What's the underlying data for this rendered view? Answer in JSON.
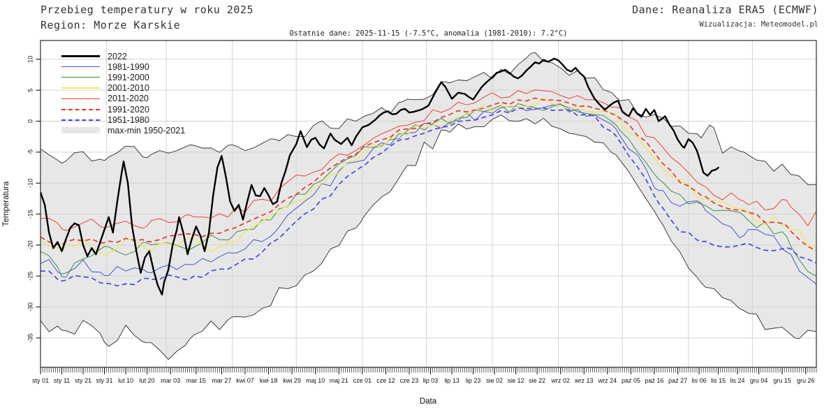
{
  "header": {
    "title": "Przebieg temperatury w roku 2025",
    "region": "Region: Morze Karskie",
    "source": "Dane: Reanaliza ERA5 (ECMWF)",
    "visualization": "Wizualizacja: Meteomodel.pl",
    "last_data": "Ostatnie dane: 2025-11-15 (-7.5°C, anomalia (1981-2010): 7.2°C)"
  },
  "legend": {
    "items": [
      {
        "label": "2022",
        "swatch": "line",
        "color": "#000000",
        "thickness": 3,
        "dash": false
      },
      {
        "label": "1981-1990",
        "swatch": "line",
        "color": "#4553d6",
        "thickness": 1,
        "dash": false
      },
      {
        "label": "1991-2000",
        "swatch": "line",
        "color": "#3f8e3f",
        "thickness": 1,
        "dash": false
      },
      {
        "label": "2001-2010",
        "swatch": "line",
        "color": "#efe65a",
        "thickness": 2,
        "dash": false
      },
      {
        "label": "2011-2020",
        "swatch": "line",
        "color": "#ef4135",
        "thickness": 1,
        "dash": false
      },
      {
        "label": "1991-2020",
        "swatch": "line",
        "color": "#e8362e",
        "thickness": 2,
        "dash": true
      },
      {
        "label": "1951-1980",
        "swatch": "line",
        "color": "#4646e8",
        "thickness": 2,
        "dash": true
      },
      {
        "label": "max-min 1950-2021",
        "swatch": "band",
        "color": "#e7e7e7"
      }
    ]
  },
  "chart_data": {
    "type": "line",
    "title": "Przebieg temperatury w roku 2025",
    "subtitle": "Ostatnie dane: 2025-11-15 (-7.5°C, anomalia (1981-2010): 7.2°C)",
    "xlabel": "Data",
    "ylabel": "Temperatura",
    "x_unit": "day_of_year_2025",
    "ylim": [
      -40,
      13
    ],
    "grid": true,
    "legend_position": "upper-left",
    "y_ticks": [
      10,
      5,
      0,
      -5,
      -10,
      -15,
      -20,
      -25,
      -30,
      -35
    ],
    "x_ticks": [
      {
        "label": "sty 01",
        "day": 1
      },
      {
        "label": "sty 11",
        "day": 11
      },
      {
        "label": "sty 21",
        "day": 21
      },
      {
        "label": "sty 31",
        "day": 31
      },
      {
        "label": "lut 10",
        "day": 41
      },
      {
        "label": "lut 20",
        "day": 51
      },
      {
        "label": "mar 03",
        "day": 62
      },
      {
        "label": "mar 15",
        "day": 74
      },
      {
        "label": "mar 27",
        "day": 86
      },
      {
        "label": "kwi 07",
        "day": 97
      },
      {
        "label": "kwi 18",
        "day": 108
      },
      {
        "label": "kwi 29",
        "day": 119
      },
      {
        "label": "maj 10",
        "day": 130
      },
      {
        "label": "maj 21",
        "day": 141
      },
      {
        "label": "cze 01",
        "day": 152
      },
      {
        "label": "cze 12",
        "day": 163
      },
      {
        "label": "cze 23",
        "day": 174
      },
      {
        "label": "lip 03",
        "day": 184
      },
      {
        "label": "lip 13",
        "day": 194
      },
      {
        "label": "lip 23",
        "day": 204
      },
      {
        "label": "sie 02",
        "day": 214
      },
      {
        "label": "sie 12",
        "day": 224
      },
      {
        "label": "sie 22",
        "day": 234
      },
      {
        "label": "wrz 02",
        "day": 245
      },
      {
        "label": "wrz 13",
        "day": 256
      },
      {
        "label": "wrz 24",
        "day": 267
      },
      {
        "label": "paź 05",
        "day": 278
      },
      {
        "label": "paź 16",
        "day": 289
      },
      {
        "label": "paź 27",
        "day": 300
      },
      {
        "label": "lis 06",
        "day": 310
      },
      {
        "label": "lis 15",
        "day": 319
      },
      {
        "label": "lis 24",
        "day": 328
      },
      {
        "label": "gru 04",
        "day": 338
      },
      {
        "label": "gru 15",
        "day": 349
      },
      {
        "label": "gru 26",
        "day": 360
      }
    ],
    "month_gridline_days": [
      32,
      60,
      91,
      121,
      152,
      182,
      213,
      244,
      274,
      305,
      335
    ],
    "colors": {
      "band": "#e7e7e7",
      "envelope_line": "#2b2b2b",
      "grid": "#d3d3d3",
      "frame": "#000000",
      "blue": "#4553d6",
      "green": "#3f8e3f",
      "yellow": "#efe65a",
      "red": "#ef4135",
      "dashed_red": "#e8362e",
      "dashed_blue": "#4646e8",
      "main": "#000000"
    },
    "band": {
      "name": "max-min 1950-2021",
      "days": [
        1,
        11,
        21,
        31,
        41,
        51,
        61,
        71,
        81,
        91,
        101,
        111,
        121,
        131,
        141,
        151,
        161,
        171,
        181,
        191,
        201,
        211,
        221,
        231,
        241,
        251,
        261,
        271,
        281,
        291,
        301,
        311,
        316,
        321,
        331,
        341,
        351,
        356,
        361,
        365
      ],
      "max": [
        -4.5,
        -7,
        -5,
        -6.5,
        -4,
        -6,
        -4.5,
        -3.5,
        -4.5,
        -4,
        -5,
        -3,
        -2,
        -1,
        -0.5,
        0.5,
        1.5,
        2.5,
        4.5,
        6,
        7,
        7.5,
        8.5,
        10.3,
        9.5,
        8,
        6.5,
        4,
        2,
        0.5,
        -0.5,
        -3.5,
        -0.5,
        -5,
        -5,
        -6.5,
        -8,
        -8.5,
        -9.5,
        -9.4
      ],
      "min": [
        -32,
        -34,
        -33,
        -35.5,
        -34,
        -36,
        -37.3,
        -34.5,
        -33.5,
        -31,
        -30.5,
        -28,
        -26.5,
        -23,
        -19.5,
        -16.5,
        -12,
        -8,
        -4.5,
        -2,
        -0.8,
        -0.2,
        0.3,
        0.2,
        -0.5,
        -1.8,
        -3.5,
        -5.5,
        -10,
        -16,
        -21,
        -25,
        -26.5,
        -28,
        -30,
        -32.5,
        -34.5,
        -35.5,
        -34,
        -33.5
      ],
      "noise_max": 1.0,
      "noise_min": 1.3
    },
    "sample_days": [
      1,
      11,
      21,
      31,
      41,
      51,
      61,
      71,
      81,
      91,
      101,
      111,
      121,
      131,
      141,
      151,
      161,
      171,
      181,
      191,
      201,
      211,
      221,
      231,
      241,
      251,
      261,
      271,
      281,
      291,
      301,
      311,
      321,
      331,
      341,
      351,
      361,
      365
    ],
    "series": [
      {
        "name": "1981-1990",
        "color": "#4553d6",
        "width": 1,
        "dash": null,
        "noise": 0.8,
        "days": "shared",
        "values": [
          -22.5,
          -24,
          -23,
          -24.5,
          -23.5,
          -24.5,
          -23.5,
          -23,
          -22,
          -21,
          -19.5,
          -17.5,
          -14.5,
          -11.5,
          -8.5,
          -6,
          -3.8,
          -2.2,
          -1.0,
          -0.2,
          0.6,
          1.4,
          2.0,
          2.3,
          2.2,
          1.8,
          0.8,
          -1.5,
          -6,
          -11,
          -13.5,
          -13,
          -16.5,
          -18.5,
          -17.5,
          -21.5,
          -25,
          -26.2
        ]
      },
      {
        "name": "1991-2000",
        "color": "#3f8e3f",
        "width": 1,
        "dash": null,
        "noise": 0.8,
        "days": "shared",
        "values": [
          -20.5,
          -25,
          -22,
          -20.5,
          -21.5,
          -20,
          -19.5,
          -20.5,
          -19,
          -18.5,
          -17,
          -15,
          -12.5,
          -10,
          -7.5,
          -5.2,
          -3.2,
          -1.8,
          -0.8,
          0,
          0.8,
          1.5,
          2.2,
          2.4,
          2.3,
          2.0,
          1.0,
          -1.0,
          -5,
          -9.5,
          -12.5,
          -14,
          -15,
          -15.5,
          -17,
          -18.5,
          -24.5,
          -24.3
        ]
      },
      {
        "name": "2001-2010",
        "color": "#efe65a",
        "width": 1.3,
        "dash": null,
        "noise": 0.8,
        "days": "shared",
        "values": [
          -19.5,
          -20.5,
          -19.5,
          -21,
          -19.5,
          -20.5,
          -20,
          -19.5,
          -20.5,
          -19,
          -17.5,
          -15.5,
          -13,
          -10.5,
          -7.8,
          -5.5,
          -3.5,
          -2.0,
          -0.9,
          0.2,
          1.2,
          2.0,
          2.8,
          3.2,
          3.0,
          2.6,
          1.8,
          0.5,
          -2.5,
          -6.5,
          -10,
          -12,
          -13.5,
          -14,
          -16.5,
          -16,
          -20,
          -20.2
        ]
      },
      {
        "name": "2011-2020",
        "color": "#ef4135",
        "width": 1,
        "dash": null,
        "noise": 0.8,
        "days": "shared",
        "values": [
          -15.5,
          -17.5,
          -16,
          -17,
          -15.5,
          -17,
          -16,
          -15,
          -16,
          -14.5,
          -13.5,
          -12,
          -9.5,
          -7.5,
          -5.5,
          -3.8,
          -2.2,
          -0.8,
          0.5,
          2.0,
          3.3,
          4.0,
          4.4,
          4.5,
          4.3,
          4.0,
          3.4,
          2.2,
          -0.5,
          -4.0,
          -7.5,
          -10,
          -12,
          -12.5,
          -14.5,
          -13,
          -16.5,
          -15
        ]
      },
      {
        "name": "1991-2020",
        "color": "#e8362e",
        "width": 1.7,
        "dash": "7,4.5",
        "noise": 0.4,
        "days": "shared",
        "values": [
          -18.5,
          -20,
          -19,
          -19.5,
          -19,
          -19.5,
          -18.5,
          -18.5,
          -18.5,
          -17.5,
          -16,
          -14,
          -11.5,
          -9.3,
          -7.0,
          -4.8,
          -3.0,
          -1.5,
          -0.4,
          0.7,
          1.8,
          2.5,
          3.1,
          3.4,
          3.2,
          2.9,
          2.1,
          0.8,
          -2.0,
          -6.0,
          -9.5,
          -12.2,
          -13.5,
          -14.5,
          -16,
          -17,
          -20.5,
          -20.7
        ]
      },
      {
        "name": "1951-1980",
        "color": "#4646e8",
        "width": 1.7,
        "dash": "7,4.5",
        "noise": 0.4,
        "days": "shared",
        "values": [
          -24,
          -25.5,
          -25,
          -26,
          -26.5,
          -25.5,
          -25,
          -25.5,
          -24.5,
          -23.5,
          -22,
          -19.5,
          -16.5,
          -13.5,
          -10.5,
          -7.5,
          -5.0,
          -3.0,
          -1.6,
          -0.6,
          0.3,
          1.0,
          1.6,
          1.9,
          1.8,
          1.4,
          0.4,
          -2.5,
          -7,
          -13,
          -17.5,
          -19.5,
          -20,
          -20,
          -20.5,
          -20.5,
          -22.5,
          -22.9
        ]
      }
    ],
    "main_series": {
      "name": "2022",
      "color": "#000000",
      "width": 2.4,
      "last_point": {
        "date": "2025-11-15",
        "value_c": -7.5,
        "anomaly_1981_2010_c": 7.2
      },
      "days": [
        1,
        3,
        5,
        7,
        9,
        11,
        13,
        15,
        17,
        19,
        21,
        23,
        25,
        27,
        29,
        31,
        33,
        35,
        37,
        39,
        40,
        42,
        44,
        46,
        48,
        50,
        52,
        54,
        56,
        58,
        59,
        61,
        63,
        65,
        66,
        68,
        70,
        72,
        74,
        76,
        78,
        80,
        82,
        84,
        86,
        88,
        90,
        92,
        94,
        96,
        98,
        100,
        102,
        104,
        106,
        108,
        110,
        112,
        114,
        116,
        118,
        121,
        123,
        126,
        128,
        130,
        132,
        134,
        137,
        139,
        142,
        145,
        147,
        149,
        152,
        155,
        158,
        160,
        162,
        164,
        166,
        168,
        170,
        172,
        174,
        176,
        178,
        180,
        183,
        186,
        189,
        191,
        194,
        197,
        200,
        202,
        204,
        206,
        208,
        210,
        212,
        215,
        217,
        219,
        221,
        223,
        225,
        227,
        229,
        231,
        233,
        235,
        237,
        239,
        241,
        242,
        244,
        246,
        248,
        250,
        252,
        254,
        256,
        258,
        260,
        261,
        263,
        265,
        266,
        268,
        270,
        272,
        274,
        276,
        277,
        279,
        281,
        283,
        285,
        287,
        289,
        291,
        293,
        294,
        296,
        298,
        300,
        302,
        303,
        305,
        307,
        309,
        310,
        312,
        314,
        316,
        318,
        319
      ],
      "values": [
        -11.5,
        -13.5,
        -18,
        -20.5,
        -19.5,
        -21,
        -19,
        -17.2,
        -16.5,
        -16.8,
        -20,
        -21.8,
        -20.5,
        -21.5,
        -19.5,
        -17.5,
        -15.5,
        -18,
        -13,
        -8.5,
        -6.5,
        -10,
        -17,
        -21,
        -24.5,
        -22,
        -21,
        -24,
        -26.5,
        -28,
        -26,
        -24,
        -20,
        -17.5,
        -15.5,
        -18,
        -21.5,
        -19,
        -17,
        -18.5,
        -21,
        -18,
        -12,
        -7.5,
        -5.6,
        -9,
        -13,
        -14.5,
        -13.5,
        -15.9,
        -13,
        -10.3,
        -12,
        -12.1,
        -10.8,
        -12,
        -13.4,
        -13,
        -10,
        -8,
        -5.5,
        -3.7,
        -1.6,
        -4.2,
        -3,
        -2.7,
        -3.8,
        -4.4,
        -2,
        -3,
        -3.7,
        -2.7,
        -3.9,
        -2.5,
        -1,
        -0.6,
        0.2,
        0.9,
        1.4,
        1.6,
        1.1,
        1.2,
        1.8,
        2,
        1.4,
        1.5,
        1.7,
        1.9,
        2.5,
        4.5,
        6.3,
        5.5,
        3.6,
        4.6,
        4.4,
        3.9,
        3.5,
        4.5,
        5.5,
        6.2,
        6.8,
        7.8,
        8,
        8.3,
        7.8,
        7.2,
        6.9,
        7.4,
        8.2,
        8.8,
        9.5,
        9.3,
        9.9,
        9.6,
        9.9,
        10.1,
        9.8,
        9.1,
        8.3,
        8,
        8.6,
        7.8,
        7.2,
        5.5,
        4.2,
        3.6,
        2.8,
        2.1,
        1.9,
        2.5,
        3,
        3.3,
        1.5,
        1,
        0.8,
        2.1,
        1.2,
        0.7,
        2,
        1,
        1.8,
        0,
        0.5,
        0.8,
        -0.5,
        -1.5,
        -3,
        -4,
        -4.3,
        -2.9,
        -3.5,
        -4.8,
        -5.9,
        -8.3,
        -8.8,
        -8,
        -7.8,
        -7.5
      ]
    }
  }
}
